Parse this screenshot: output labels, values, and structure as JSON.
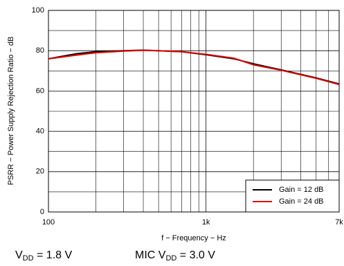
{
  "chart_data": {
    "type": "line",
    "x_label": "f − Frequency − Hz",
    "y_label": "PSRR − Power Supply Rejection Ratio − dB",
    "x": [
      100,
      150,
      200,
      300,
      400,
      500,
      700,
      1000,
      1500,
      2000,
      3000,
      5000,
      7000
    ],
    "series": [
      {
        "name": "Gain = 12 dB",
        "color": "#000000",
        "values": [
          76,
          78.5,
          79.5,
          80,
          80.3,
          80,
          79.5,
          78,
          76,
          73.5,
          70.5,
          66.5,
          63.5
        ]
      },
      {
        "name": "Gain = 24 dB",
        "color": "#e00000",
        "values": [
          76,
          77.8,
          79,
          79.8,
          80.2,
          80,
          79.5,
          78.2,
          76.3,
          73,
          70.3,
          66.3,
          63.2
        ]
      }
    ],
    "xscale": "log",
    "xlim": [
      100,
      7000
    ],
    "xticks": [
      100,
      {
        "value": 1000,
        "label": "1k"
      },
      {
        "value": 7000,
        "label": "7k"
      }
    ],
    "ylim": [
      0,
      100
    ],
    "yticks": [
      0,
      20,
      40,
      60,
      80,
      100
    ],
    "grid": true,
    "legend": "lower right",
    "annotations": [
      {
        "prefix": "V",
        "sub": "DD",
        "suffix": " = 1.8 V"
      },
      {
        "prefix": "MIC V",
        "sub": "DD",
        "suffix": " = 3.0 V"
      }
    ]
  }
}
